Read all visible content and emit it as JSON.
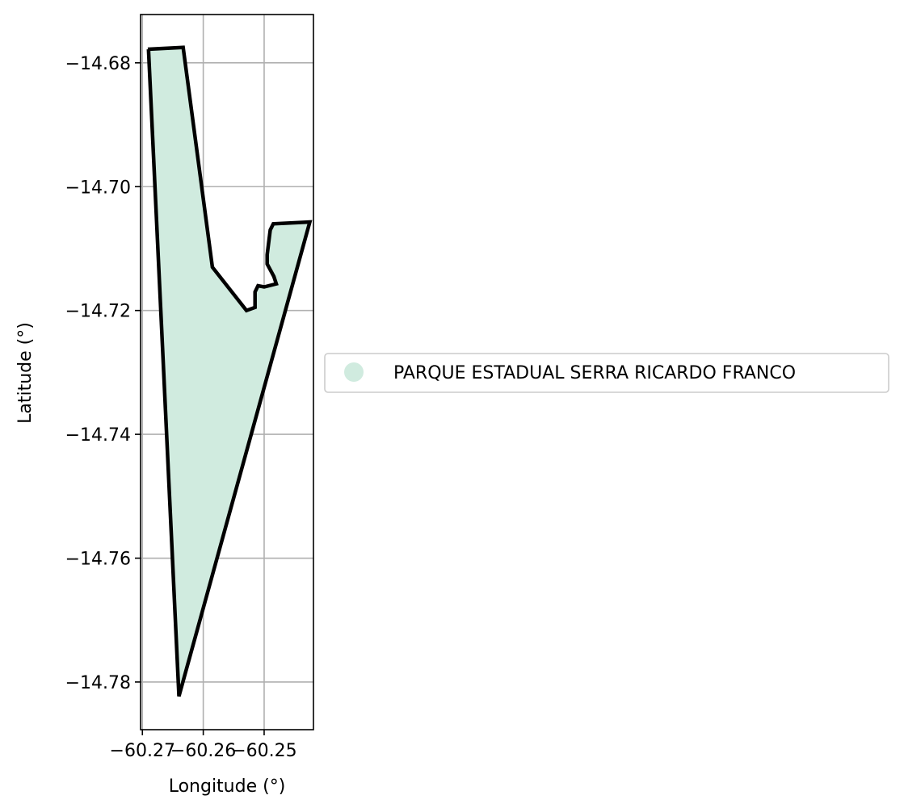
{
  "map": {
    "xlabel": "Longitude (°)",
    "ylabel": "Latitude (°)",
    "x_ticks": [
      {
        "value": -60.27,
        "label": "−60.27"
      },
      {
        "value": -60.26,
        "label": "−60.26"
      },
      {
        "value": -60.25,
        "label": "−60.25"
      }
    ],
    "y_ticks": [
      {
        "value": -14.68,
        "label": "−14.68"
      },
      {
        "value": -14.7,
        "label": "−14.70"
      },
      {
        "value": -14.72,
        "label": "−14.72"
      },
      {
        "value": -14.74,
        "label": "−14.74"
      },
      {
        "value": -14.76,
        "label": "−14.76"
      },
      {
        "value": -14.78,
        "label": "−14.78"
      }
    ],
    "xlim": [
      -60.2703,
      -60.2419
    ],
    "ylim": [
      -14.7877,
      -14.6722
    ],
    "grid": true,
    "legend": {
      "placement": "right",
      "entries": [
        {
          "label": "PARQUE ESTADUAL SERRA RICARDO FRANCO",
          "color": "#d0ebdf"
        }
      ]
    },
    "polygon": {
      "name": "PARQUE ESTADUAL SERRA RICARDO FRANCO",
      "fill": "#d0ebdf",
      "edge": "#000000",
      "coordinates": [
        [
          -60.2691,
          -14.6778
        ],
        [
          -60.2633,
          -14.6775
        ],
        [
          -60.2585,
          -14.713
        ],
        [
          -60.2529,
          -14.72
        ],
        [
          -60.2515,
          -14.7195
        ],
        [
          -60.2515,
          -14.717
        ],
        [
          -60.251,
          -14.716
        ],
        [
          -60.25,
          -14.7162
        ],
        [
          -60.248,
          -14.7157
        ],
        [
          -60.2484,
          -14.7145
        ],
        [
          -60.2495,
          -14.7125
        ],
        [
          -60.2495,
          -14.711
        ],
        [
          -60.249,
          -14.707
        ],
        [
          -60.2485,
          -14.706
        ],
        [
          -60.2425,
          -14.7057
        ],
        [
          -60.264,
          -14.7823
        ],
        [
          -60.269,
          -14.6778
        ]
      ]
    }
  }
}
